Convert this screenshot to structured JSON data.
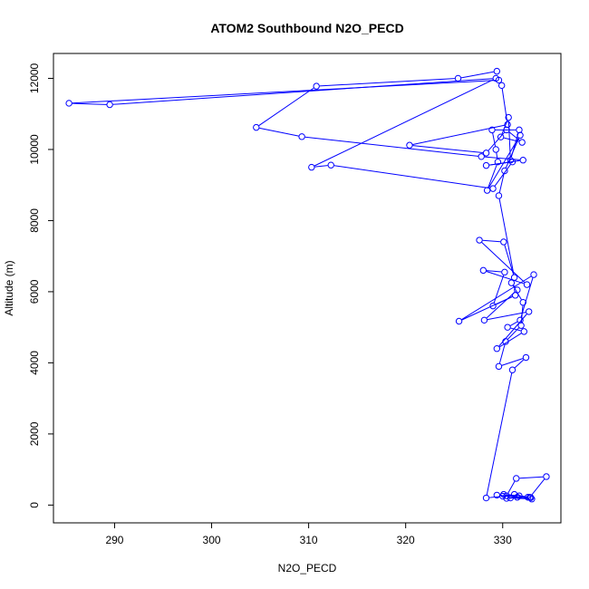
{
  "chart_data": {
    "type": "line",
    "title": "ATOM2 Southbound N2O_PECD",
    "xlabel": "N2O_PECD",
    "ylabel": "Altitude (m)",
    "xlim": [
      283.7,
      336.0
    ],
    "ylim": [
      -500,
      12700
    ],
    "xticks": [
      290,
      300,
      310,
      320,
      330
    ],
    "yticks": [
      0,
      2000,
      4000,
      6000,
      8000,
      10000,
      12000
    ],
    "grid": false,
    "legend": "none",
    "color": "#0000ff",
    "marker": "open-circle",
    "x": [
      329.4,
      325.4,
      310.8,
      304.6,
      309.3,
      327.8,
      332.1,
      328.3,
      331.0,
      329.0,
      312.3,
      310.3,
      329.3,
      289.5,
      285.3,
      329.6,
      329.9,
      330.5,
      320.4,
      328.3,
      330.4,
      332.0,
      329.8,
      330.6,
      330.8,
      331.7,
      328.9,
      329.3,
      329.5,
      328.4,
      331.8,
      330.2,
      329.6,
      331.2,
      330.1,
      327.6,
      332.5,
      328.0,
      330.2,
      329.0,
      331.3,
      325.5,
      333.2,
      331.8,
      330.5,
      332.2,
      329.4,
      332.7,
      328.1,
      331.5,
      330.9,
      332.1,
      331.9,
      330.3,
      329.6,
      332.4,
      331.0,
      328.3,
      330.0,
      331.2,
      332.6,
      330.4,
      331.5,
      329.4,
      332.9,
      331.7,
      330.1,
      333.0,
      330.8,
      332.8,
      334.5,
      331.4,
      330.4
    ],
    "y": [
      12200,
      12000,
      11780,
      10620,
      10360,
      9800,
      9700,
      9550,
      9650,
      8900,
      9560,
      9500,
      12000,
      11260,
      11300,
      11950,
      11800,
      10700,
      10120,
      9900,
      10550,
      10200,
      10350,
      10900,
      9700,
      10550,
      10550,
      10000,
      9650,
      8850,
      10400,
      9400,
      8700,
      6400,
      7400,
      7450,
      6200,
      6600,
      6550,
      5600,
      5900,
      5170,
      6480,
      5200,
      5000,
      4880,
      4400,
      5440,
      5200,
      6050,
      6250,
      5700,
      5050,
      4600,
      3900,
      4150,
      3800,
      200,
      250,
      300,
      220,
      190,
      220,
      280,
      210,
      260,
      300,
      170,
      200,
      220,
      800,
      750,
      260
    ]
  }
}
